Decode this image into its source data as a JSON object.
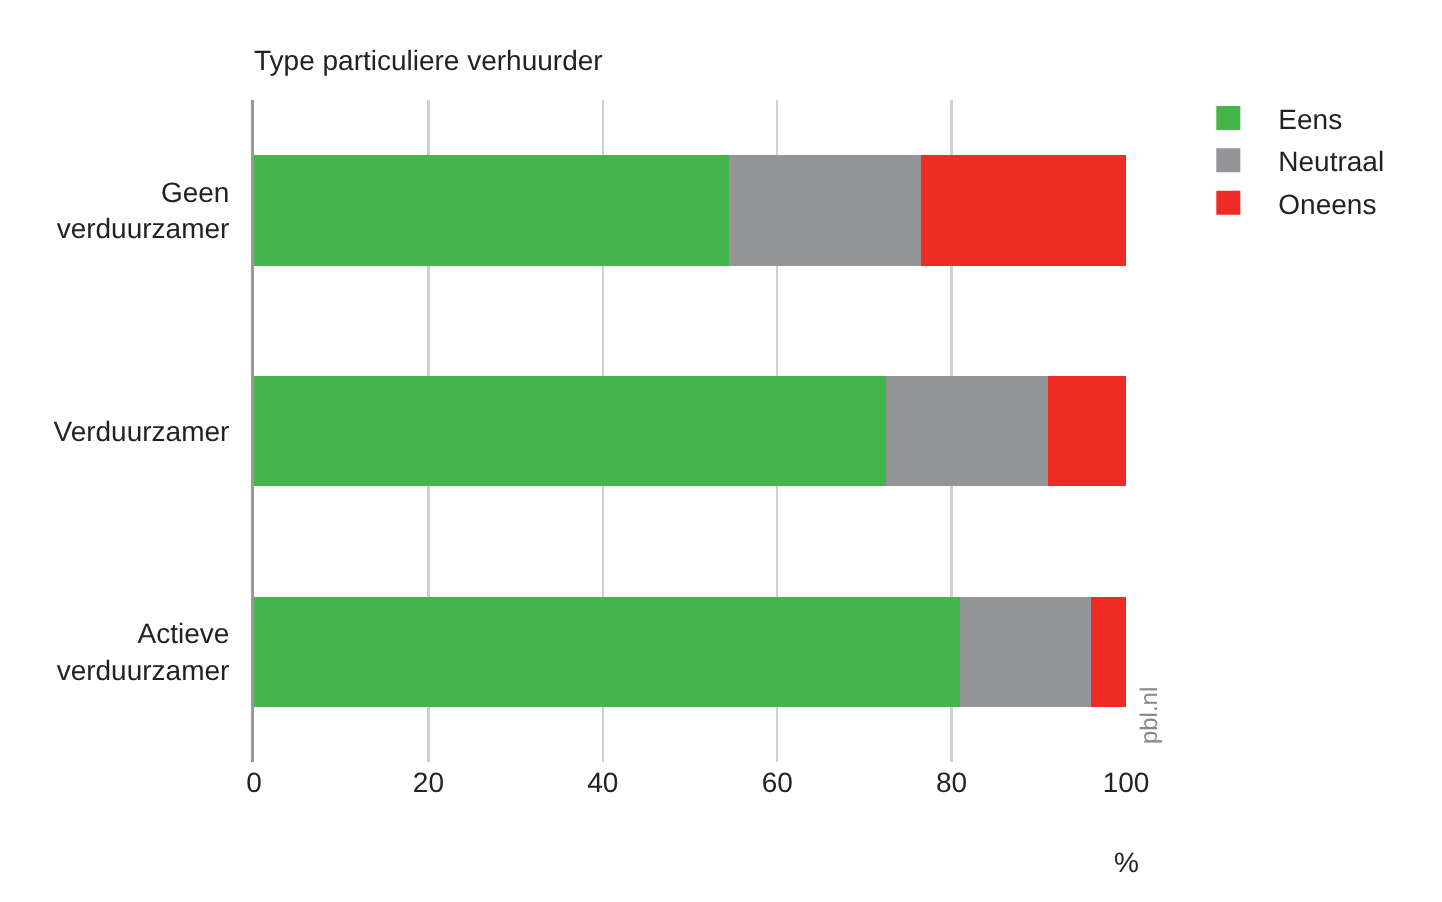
{
  "chart_data": {
    "type": "bar",
    "orientation": "horizontal",
    "stacked": true,
    "title": "Type particuliere verhuurder",
    "xlabel": "%",
    "categories": [
      "Geen verduurzamer",
      "Verduurzamer",
      "Actieve verduurzamer"
    ],
    "series": [
      {
        "name": "Eens",
        "color": "#43b54b",
        "values": [
          54.5,
          72.5,
          81
        ]
      },
      {
        "name": "Neutraal",
        "color": "#939598",
        "values": [
          22,
          18.5,
          15
        ]
      },
      {
        "name": "Oneens",
        "color": "#ee2b24",
        "values": [
          23.5,
          9,
          4
        ]
      }
    ],
    "xlim": [
      0,
      100
    ],
    "xticks": [
      0,
      20,
      40,
      60,
      80,
      100
    ],
    "grid": "x",
    "legend": "top right",
    "annotations": [
      "pbl.nl"
    ]
  }
}
